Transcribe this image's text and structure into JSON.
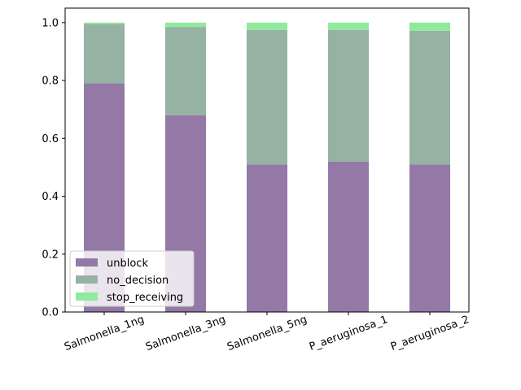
{
  "chart_data": {
    "type": "bar",
    "stacked": true,
    "categories": [
      "Salmonella_1ng",
      "Salmonella_3ng",
      "Salmonella_5ng",
      "P_aeruginosa_1",
      "P_aeruginosa_2"
    ],
    "series": [
      {
        "name": "unblock",
        "color": "#9478a6",
        "values": [
          0.79,
          0.68,
          0.51,
          0.52,
          0.51
        ]
      },
      {
        "name": "no_decision",
        "color": "#95b2a2",
        "values": [
          0.205,
          0.305,
          0.465,
          0.455,
          0.462
        ]
      },
      {
        "name": "stop_receiving",
        "color": "#90ea9c",
        "values": [
          0.005,
          0.015,
          0.025,
          0.025,
          0.028
        ]
      }
    ],
    "ylim": [
      0,
      1.0
    ],
    "yticks": [
      "0.0",
      "0.2",
      "0.4",
      "0.6",
      "0.8",
      "1.0"
    ],
    "ytick_values": [
      0,
      0.2,
      0.4,
      0.6,
      0.8,
      1.0
    ],
    "title": "",
    "xlabel": "",
    "ylabel": "",
    "grid": false,
    "legend_position": "lower-left",
    "xtick_rotation": "-20deg"
  }
}
